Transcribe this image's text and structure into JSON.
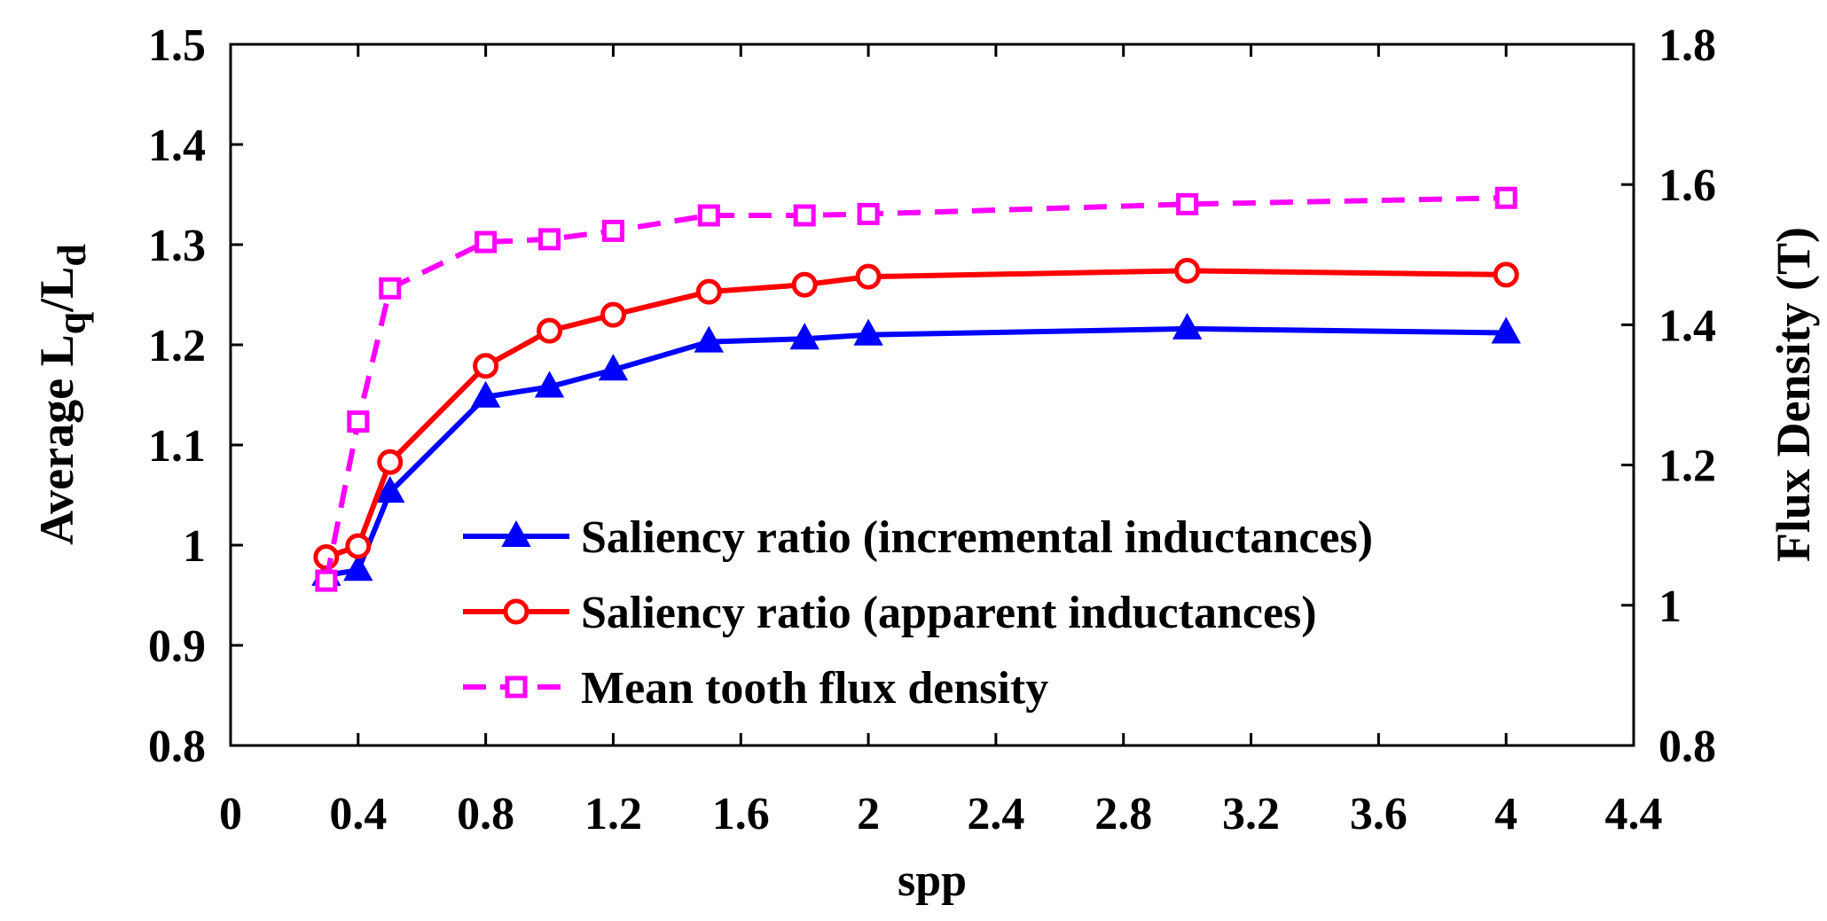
{
  "chart_data": {
    "type": "line",
    "title": "",
    "xlabel": "spp",
    "ylabel_main": "Average L",
    "ylabel_sub_q": "q",
    "ylabel_sep": "/L",
    "ylabel_sub_d": "d",
    "y2label": "Flux Density (T)",
    "xlim": [
      0,
      4.4
    ],
    "ylim": [
      0.8,
      1.5
    ],
    "y2lim": [
      0.8,
      1.8
    ],
    "x_ticks": [
      0,
      0.4,
      0.8,
      1.2,
      1.6,
      2,
      2.4,
      2.8,
      3.2,
      3.6,
      4,
      4.4
    ],
    "x_tick_labels": [
      "0",
      "0.4",
      "0.8",
      "1.2",
      "1.6",
      "2",
      "2.4",
      "2.8",
      "3.2",
      "3.6",
      "4",
      "4.4"
    ],
    "y_ticks": [
      0.8,
      0.9,
      1,
      1.1,
      1.2,
      1.3,
      1.4,
      1.5
    ],
    "y_tick_labels": [
      "0.8",
      "0.9",
      "1",
      "1.1",
      "1.2",
      "1.3",
      "1.4",
      "1.5"
    ],
    "y2_ticks": [
      0.8,
      1,
      1.2,
      1.4,
      1.6,
      1.8
    ],
    "y2_tick_labels": [
      "0.8",
      "1",
      "1.2",
      "1.4",
      "1.6",
      "1.8"
    ],
    "legend_position": "bottom-center",
    "series": [
      {
        "name": "Saliency ratio (incremental inductances)",
        "axis": "left",
        "color": "#0000ff",
        "dash": "solid",
        "marker": "triangle",
        "x": [
          0.3,
          0.4,
          0.5,
          0.8,
          1.0,
          1.2,
          1.5,
          1.8,
          2.0,
          3.0,
          4.0
        ],
        "y": [
          0.97,
          0.975,
          1.053,
          1.148,
          1.158,
          1.175,
          1.203,
          1.206,
          1.21,
          1.216,
          1.212
        ]
      },
      {
        "name": "Saliency ratio (apparent inductances)",
        "axis": "left",
        "color": "#ff0000",
        "dash": "solid",
        "marker": "circle",
        "x": [
          0.3,
          0.4,
          0.5,
          0.8,
          1.0,
          1.2,
          1.5,
          1.8,
          2.0,
          3.0,
          4.0
        ],
        "y": [
          0.988,
          0.999,
          1.083,
          1.179,
          1.214,
          1.23,
          1.253,
          1.26,
          1.268,
          1.274,
          1.27
        ]
      },
      {
        "name": "Mean tooth flux density",
        "axis": "right",
        "color": "#ff00ff",
        "dash": "dashed",
        "marker": "square",
        "x": [
          0.3,
          0.4,
          0.5,
          0.8,
          1.0,
          1.2,
          1.5,
          1.8,
          2.0,
          3.0,
          4.0
        ],
        "y": [
          1.035,
          1.262,
          1.452,
          1.518,
          1.522,
          1.534,
          1.556,
          1.556,
          1.558,
          1.572,
          1.581
        ]
      }
    ]
  }
}
